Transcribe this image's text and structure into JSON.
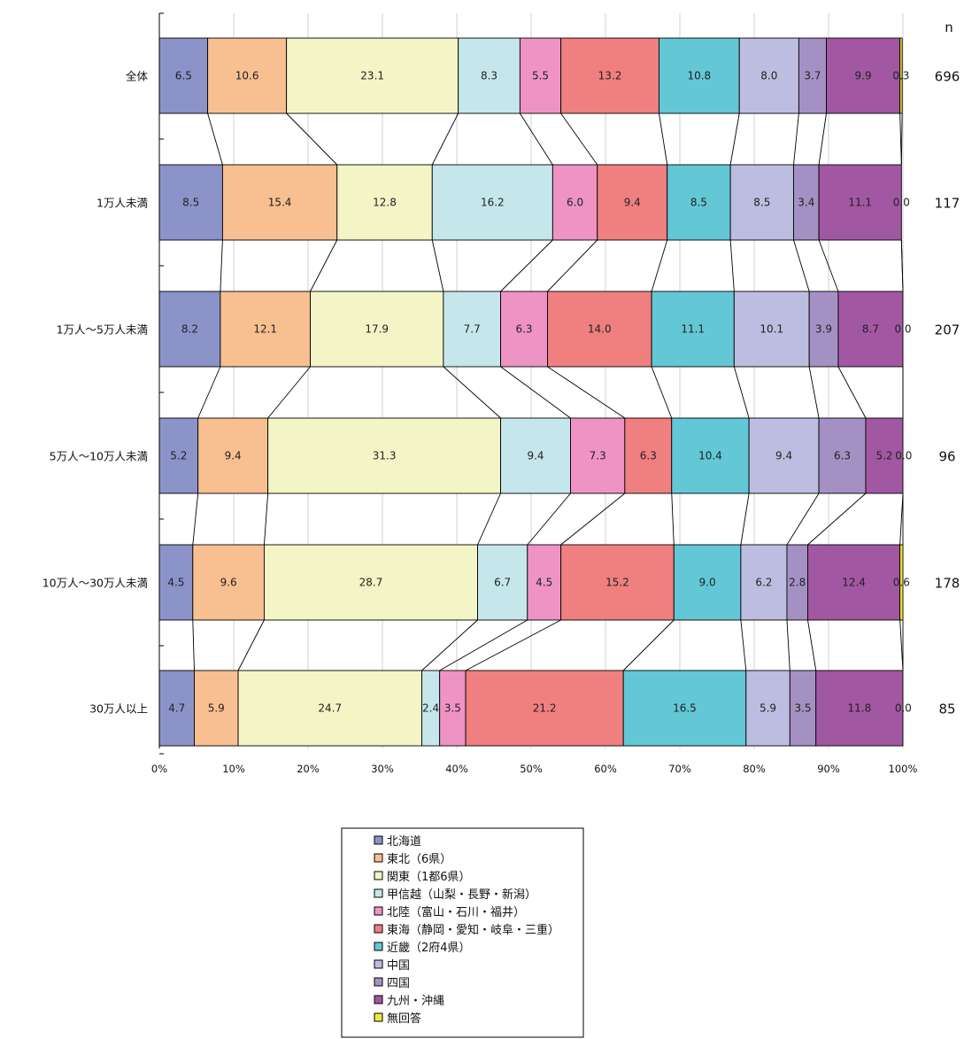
{
  "chart_data": {
    "type": "bar",
    "stacked": true,
    "orientation": "horizontal",
    "percent_stacked": true,
    "n_header": "n",
    "categories": [
      "全体",
      "1万人未満",
      "1万人～5万人未満",
      "5万人～10万人未満",
      "10万人～30万人未満",
      "30万人以上"
    ],
    "n": [
      696,
      117,
      207,
      96,
      178,
      85
    ],
    "series": [
      {
        "name": "北海道",
        "color": "#8b93c9",
        "values": [
          6.5,
          8.5,
          8.2,
          5.2,
          4.5,
          4.7
        ]
      },
      {
        "name": "東北（6県）",
        "color": "#f8bf91",
        "values": [
          10.6,
          15.4,
          12.1,
          9.4,
          9.6,
          5.9
        ]
      },
      {
        "name": "関東（1都6県）",
        "color": "#f4f5c6",
        "values": [
          23.1,
          12.8,
          17.9,
          31.3,
          28.7,
          24.7
        ]
      },
      {
        "name": "甲信越（山梨・長野・新潟）",
        "color": "#c5e7ec",
        "values": [
          8.3,
          16.2,
          7.7,
          9.4,
          6.7,
          2.4
        ]
      },
      {
        "name": "北陸（富山・石川・福井）",
        "color": "#ee93c4",
        "values": [
          5.5,
          6.0,
          6.3,
          7.3,
          4.5,
          3.5
        ]
      },
      {
        "name": "東海（静岡・愛知・岐阜・三重）",
        "color": "#f07f7f",
        "values": [
          13.2,
          9.4,
          14.0,
          6.3,
          15.2,
          21.2
        ]
      },
      {
        "name": "近畿（2府4県）",
        "color": "#63c7d6",
        "values": [
          10.8,
          8.5,
          11.1,
          10.4,
          9.0,
          16.5
        ]
      },
      {
        "name": "中国",
        "color": "#bcbde0",
        "values": [
          8.0,
          8.5,
          10.1,
          9.4,
          6.2,
          5.9
        ]
      },
      {
        "name": "四国",
        "color": "#a590c4",
        "values": [
          3.7,
          3.4,
          3.9,
          6.3,
          2.8,
          3.5
        ]
      },
      {
        "name": "九州・沖縄",
        "color": "#a257a3",
        "values": [
          9.9,
          11.1,
          8.7,
          5.2,
          12.4,
          11.8
        ]
      },
      {
        "name": "無回答",
        "color": "#efe831",
        "values": [
          0.3,
          0.0,
          0.0,
          0.0,
          0.6,
          0.0
        ]
      }
    ],
    "x_ticks": [
      "0%",
      "10%",
      "20%",
      "30%",
      "40%",
      "50%",
      "60%",
      "70%",
      "80%",
      "90%",
      "100%"
    ],
    "xlim": [
      0,
      100
    ],
    "grid": true,
    "legend_position": "bottom-center",
    "connector_lines": true
  }
}
